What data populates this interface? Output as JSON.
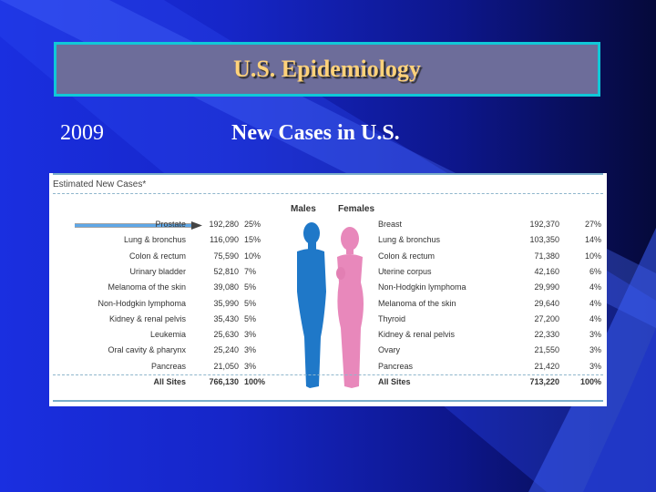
{
  "slide": {
    "title": "U.S. Epidemiology",
    "year": "2009",
    "subtitle": "New Cases in U.S."
  },
  "table": {
    "header": "Estimated New Cases*",
    "males_label": "Males",
    "females_label": "Females",
    "males": [
      {
        "site": "Prostate",
        "cases": "192,280",
        "pct": "25%"
      },
      {
        "site": "Lung & bronchus",
        "cases": "116,090",
        "pct": "15%"
      },
      {
        "site": "Colon & rectum",
        "cases": "75,590",
        "pct": "10%"
      },
      {
        "site": "Urinary bladder",
        "cases": "52,810",
        "pct": "7%"
      },
      {
        "site": "Melanoma of the skin",
        "cases": "39,080",
        "pct": "5%"
      },
      {
        "site": "Non-Hodgkin lymphoma",
        "cases": "35,990",
        "pct": "5%"
      },
      {
        "site": "Kidney & renal pelvis",
        "cases": "35,430",
        "pct": "5%"
      },
      {
        "site": "Leukemia",
        "cases": "25,630",
        "pct": "3%"
      },
      {
        "site": "Oral cavity & pharynx",
        "cases": "25,240",
        "pct": "3%"
      },
      {
        "site": "Pancreas",
        "cases": "21,050",
        "pct": "3%"
      },
      {
        "site": "All Sites",
        "cases": "766,130",
        "pct": "100%"
      }
    ],
    "females": [
      {
        "site": "Breast",
        "cases": "192,370",
        "pct": "27%"
      },
      {
        "site": "Lung & bronchus",
        "cases": "103,350",
        "pct": "14%"
      },
      {
        "site": "Colon & rectum",
        "cases": "71,380",
        "pct": "10%"
      },
      {
        "site": "Uterine corpus",
        "cases": "42,160",
        "pct": "6%"
      },
      {
        "site": "Non-Hodgkin lymphoma",
        "cases": "29,990",
        "pct": "4%"
      },
      {
        "site": "Melanoma of the skin",
        "cases": "29,640",
        "pct": "4%"
      },
      {
        "site": "Thyroid",
        "cases": "27,200",
        "pct": "4%"
      },
      {
        "site": "Kidney & renal pelvis",
        "cases": "22,330",
        "pct": "3%"
      },
      {
        "site": "Ovary",
        "cases": "21,550",
        "pct": "3%"
      },
      {
        "site": "Pancreas",
        "cases": "21,420",
        "pct": "3%"
      },
      {
        "site": "All Sites",
        "cases": "713,220",
        "pct": "100%"
      }
    ]
  },
  "colors": {
    "male": "#1f78c8",
    "female": "#e888bb",
    "title_text": "#ffd27a",
    "title_border": "#10c8d8"
  },
  "icons": {
    "male_figure": "male-silhouette-icon",
    "female_figure": "female-silhouette-icon",
    "pointer": "arrow-pointer-icon"
  }
}
